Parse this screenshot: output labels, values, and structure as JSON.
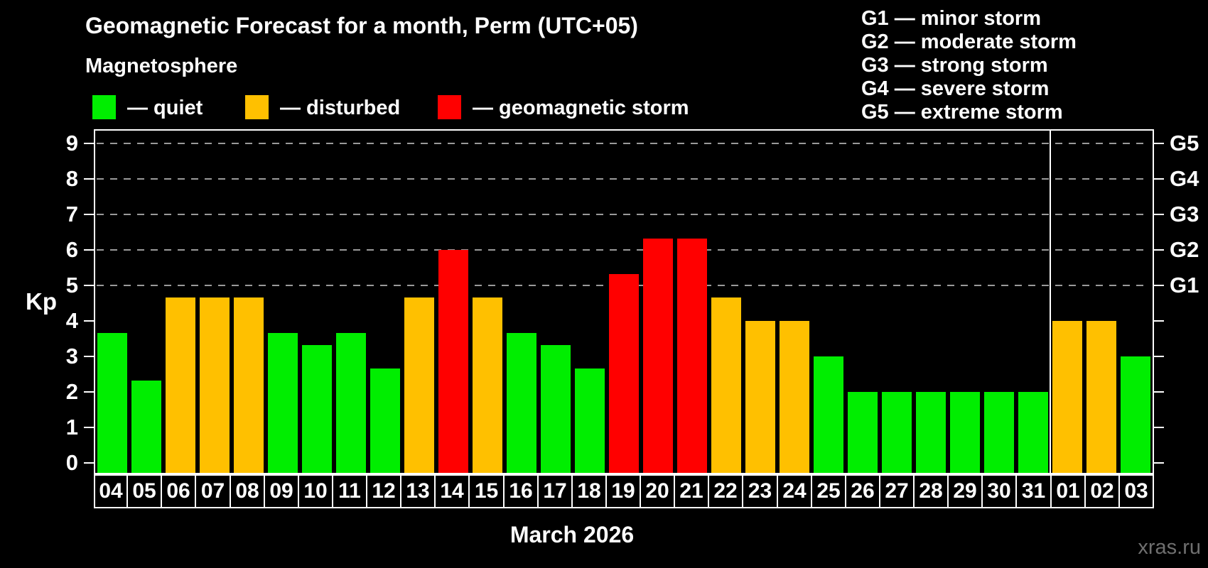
{
  "header": {
    "title": "Geomagnetic Forecast for a month, Perm (UTC+05)",
    "subtitle": "Magnetosphere"
  },
  "legend": {
    "items": [
      {
        "label": "— quiet",
        "status": "quiet",
        "color": "#00ee00"
      },
      {
        "label": "— disturbed",
        "status": "disturbed",
        "color": "#ffc000"
      },
      {
        "label": "— geomagnetic storm",
        "status": "storm",
        "color": "#ff0000"
      }
    ]
  },
  "g_legend": {
    "lines": [
      "G1 — minor storm",
      "G2 — moderate storm",
      "G3 — strong storm",
      "G4 — severe storm",
      "G5 — extreme storm"
    ]
  },
  "axes": {
    "kp_label": "Kp",
    "left_tick_labels": [
      "0",
      "1",
      "2",
      "3",
      "4",
      "5",
      "6",
      "7",
      "8",
      "9"
    ],
    "right_tick_labels": [
      "G1",
      "G2",
      "G3",
      "G4",
      "G5"
    ]
  },
  "chart_data": {
    "type": "bar",
    "title": "Geomagnetic Forecast for a month, Perm (UTC+05)",
    "ylabel": "Kp",
    "ylim": [
      0,
      9
    ],
    "grid": "dashed horizontal at Kp 5-9",
    "gridlines_at": [
      5,
      6,
      7,
      8,
      9
    ],
    "month_label": "March 2026",
    "month_separator_after_category": "31",
    "categories": [
      "04",
      "05",
      "06",
      "07",
      "08",
      "09",
      "10",
      "11",
      "12",
      "13",
      "14",
      "15",
      "16",
      "17",
      "18",
      "19",
      "20",
      "21",
      "22",
      "23",
      "24",
      "25",
      "26",
      "27",
      "28",
      "29",
      "30",
      "31",
      "01",
      "02",
      "03"
    ],
    "values": [
      3.67,
      2.33,
      4.67,
      4.67,
      4.67,
      3.67,
      3.33,
      3.67,
      2.67,
      4.67,
      6.0,
      4.67,
      3.67,
      3.33,
      2.67,
      5.33,
      6.33,
      6.33,
      4.67,
      4.0,
      4.0,
      3.0,
      2.0,
      2.0,
      2.0,
      2.0,
      2.0,
      2.0,
      4.0,
      4.0,
      3.0
    ],
    "statuses": [
      "quiet",
      "quiet",
      "disturbed",
      "disturbed",
      "disturbed",
      "quiet",
      "quiet",
      "quiet",
      "quiet",
      "disturbed",
      "storm",
      "disturbed",
      "quiet",
      "quiet",
      "quiet",
      "storm",
      "storm",
      "storm",
      "disturbed",
      "disturbed",
      "disturbed",
      "quiet",
      "quiet",
      "quiet",
      "quiet",
      "quiet",
      "quiet",
      "quiet",
      "disturbed",
      "disturbed",
      "quiet"
    ]
  },
  "footer": {
    "month_label": "March 2026",
    "watermark": "xras.ru"
  }
}
